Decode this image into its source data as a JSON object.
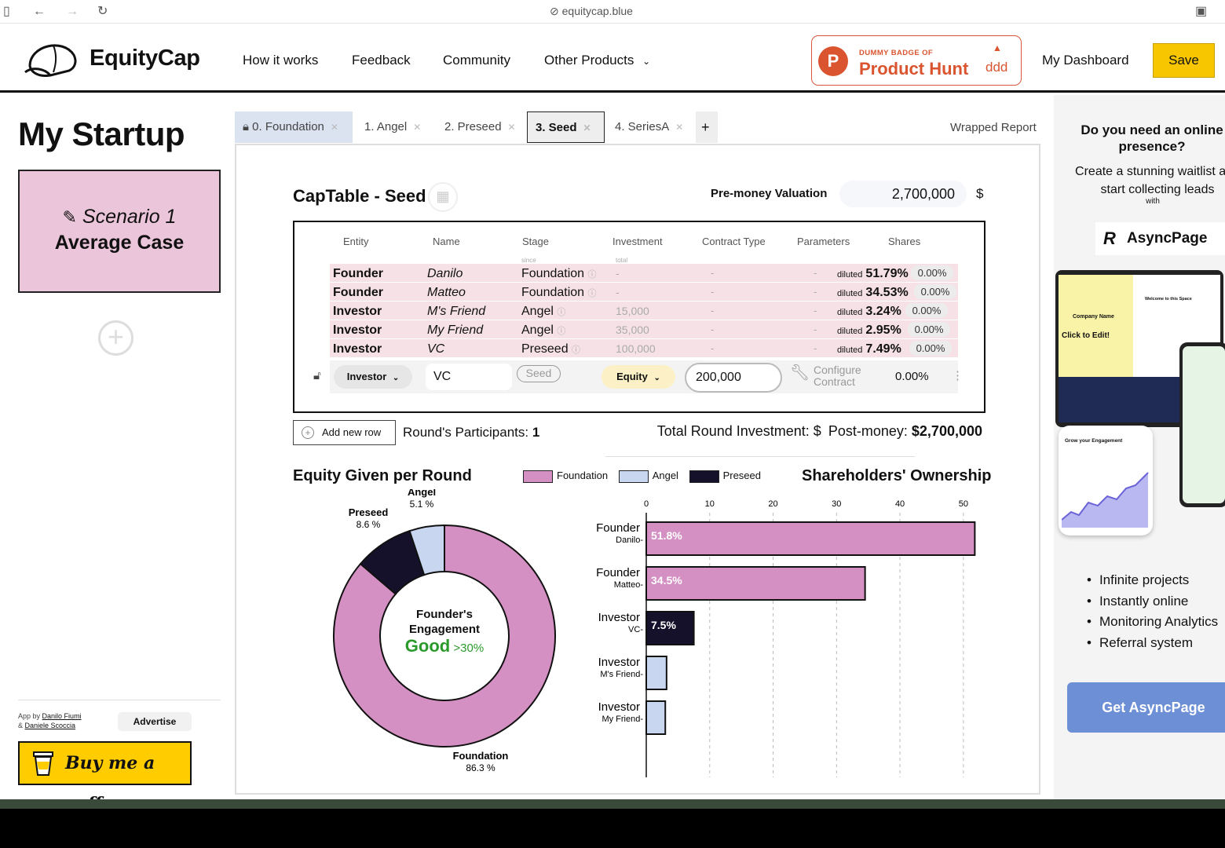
{
  "browser": {
    "url": "equitycap.blue"
  },
  "nav": {
    "brand": "EquityCap",
    "links": [
      "How it works",
      "Feedback",
      "Community",
      "Other Products"
    ],
    "badge_top": "DUMMY BADGE OF",
    "badge_name": "Product Hunt",
    "badge_count": "ddd",
    "dashboard": "My Dashboard",
    "save": "Save"
  },
  "sidebar": {
    "title": "My Startup",
    "scenario_name": "Scenario 1",
    "scenario_case": "Average Case",
    "credit_prefix": "App by",
    "credit_author1": "Danilo Fiumi",
    "credit_amp": "&",
    "credit_author2": "Daniele Scoccia",
    "advertise": "Advertise",
    "coffee": "Buy me a coffee"
  },
  "tabs": [
    {
      "label": "0. Foundation"
    },
    {
      "label": "1. Angel"
    },
    {
      "label": "2. Preseed"
    },
    {
      "label": "3. Seed"
    },
    {
      "label": "4. SeriesA"
    }
  ],
  "wrapped_report": "Wrapped Report",
  "captable": {
    "title": "CapTable - Seed",
    "pre_money_label": "Pre-money Valuation",
    "pre_money_value": "2,700,000",
    "currency": "$",
    "columns": [
      "Entity",
      "Name",
      "Stage",
      "Investment",
      "Contract Type",
      "Parameters",
      "Shares"
    ],
    "stage_hint": "since",
    "investment_hint": "total",
    "rows": [
      {
        "entity": "Founder",
        "name": "Danilo",
        "stage": "Foundation",
        "investment": "-",
        "contract": "-",
        "params": "-",
        "diluted_label": "diluted",
        "diluted": "51.79%",
        "pct": "0.00%"
      },
      {
        "entity": "Founder",
        "name": "Matteo",
        "stage": "Foundation",
        "investment": "-",
        "contract": "-",
        "params": "-",
        "diluted_label": "diluted",
        "diluted": "34.53%",
        "pct": "0.00%"
      },
      {
        "entity": "Investor",
        "name": "M's Friend",
        "stage": "Angel",
        "investment": "15,000",
        "contract": "-",
        "params": "-",
        "diluted_label": "diluted",
        "diluted": "3.24%",
        "pct": "0.00%"
      },
      {
        "entity": "Investor",
        "name": "My Friend",
        "stage": "Angel",
        "investment": "35,000",
        "contract": "-",
        "params": "-",
        "diluted_label": "diluted",
        "diluted": "2.95%",
        "pct": "0.00%"
      },
      {
        "entity": "Investor",
        "name": "VC",
        "stage": "Preseed",
        "investment": "100,000",
        "contract": "-",
        "params": "-",
        "diluted_label": "diluted",
        "diluted": "7.49%",
        "pct": "0.00%"
      }
    ],
    "edit_row": {
      "entity": "Investor",
      "name": "VC",
      "stage": "Seed",
      "contract": "Equity",
      "investment": "200,000",
      "configure": "Configure Contract",
      "shares": "0.00%"
    },
    "add_row": "Add new row",
    "participants_label": "Round's Participants:",
    "participants": "1",
    "total_label": "Total Round Investment: $",
    "post_money_label": "Post-money:",
    "post_money": "$2,700,000"
  },
  "donut": {
    "title": "Equity Given per Round",
    "center_l1": "Founder's",
    "center_l2": "Engagement",
    "center_rating": "Good",
    "center_threshold": ">30%",
    "labels": [
      {
        "name": "Foundation",
        "value": "86.3 %"
      },
      {
        "name": "Angel",
        "value": "5.1 %"
      },
      {
        "name": "Preseed",
        "value": "8.6 %"
      }
    ]
  },
  "legend": [
    {
      "name": "Foundation",
      "color": "#d48fc3"
    },
    {
      "name": "Angel",
      "color": "#c9d6ef"
    },
    {
      "name": "Preseed",
      "color": "#15112a"
    }
  ],
  "chart_data": [
    {
      "type": "pie",
      "title": "Equity Given per Round",
      "categories": [
        "Foundation",
        "Angel",
        "Preseed"
      ],
      "values": [
        86.3,
        5.1,
        8.6
      ],
      "colors": [
        "#d48fc3",
        "#c9d6ef",
        "#15112a"
      ]
    },
    {
      "type": "bar",
      "title": "Shareholders' Ownership",
      "orientation": "horizontal",
      "categories": [
        {
          "group": "Founder",
          "name": "Danilo"
        },
        {
          "group": "Founder",
          "name": "Matteo"
        },
        {
          "group": "Investor",
          "name": "VC"
        },
        {
          "group": "Investor",
          "name": "M's Friend"
        },
        {
          "group": "Investor",
          "name": "My Friend"
        }
      ],
      "values": [
        51.8,
        34.5,
        7.5,
        3.2,
        3.0
      ],
      "value_labels": [
        "51.8%",
        "34.5%",
        "7.5%",
        "",
        ""
      ],
      "colors": [
        "#d48fc3",
        "#d48fc3",
        "#15112a",
        "#c9d6ef",
        "#c9d6ef"
      ],
      "xticks": [
        0,
        10,
        20,
        30,
        40,
        50
      ],
      "xlim": [
        0,
        52
      ],
      "grid": "vertical dashed"
    }
  ],
  "bar_title": "Shareholders' Ownership",
  "ad": {
    "title": "Do you need an online presence?",
    "subtitle": "Create a stunning waitlist and start collecting leads",
    "with": "with",
    "brand": "AsyncPage",
    "bullets": [
      "Infinite projects",
      "Instantly online",
      "Monitoring Analytics",
      "Referral system"
    ],
    "cta": "Get AsyncPage",
    "mock_company": "Company Name",
    "mock_click": "Click to Edit!",
    "mock_welcome": "Welcome to this Space",
    "mock_grow": "Grow your Engagement"
  }
}
